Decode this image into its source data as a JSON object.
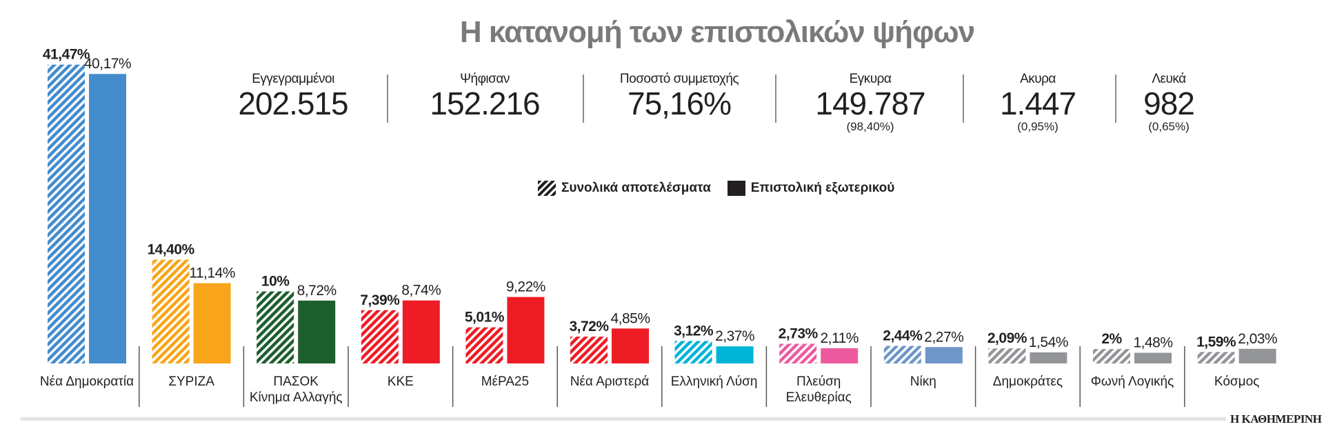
{
  "title": "Η κατανομή των επιστολικών ψήφων",
  "stats": [
    {
      "label": "Εγγεγραμμένοι",
      "value": "202.515",
      "sub": ""
    },
    {
      "label": "Ψήφισαν",
      "value": "152.216",
      "sub": ""
    },
    {
      "label": "Ποσοστό συμμετοχής",
      "value": "75,16%",
      "sub": ""
    },
    {
      "label": "Εγκυρα",
      "value": "149.787",
      "sub": "(98,40%)"
    },
    {
      "label": "Ακυρα",
      "value": "1.447",
      "sub": "(0,95%)"
    },
    {
      "label": "Λευκά",
      "value": "982",
      "sub": "(0,65%)"
    }
  ],
  "legend": {
    "total": "Συνολικά αποτελέσματα",
    "abroad": "Επιστολική εξωτερικού"
  },
  "brand": "Η ΚΑΘΗΜΕΡΙΝΗ",
  "chart_data": {
    "type": "bar",
    "title": "Η κατανομή των επιστολικών ψήφων",
    "grid": false,
    "legend_placement": "top-center",
    "series": [
      {
        "name": "Συνολικά αποτελέσματα",
        "pattern": "hatched",
        "values": [
          41.47,
          14.4,
          10,
          7.39,
          5.01,
          3.72,
          3.12,
          2.73,
          2.44,
          2.09,
          2,
          1.59
        ],
        "labels": [
          "41,47%",
          "14,40%",
          "10%",
          "7,39%",
          "5,01%",
          "3,72%",
          "3,12%",
          "2,73%",
          "2,44%",
          "2,09%",
          "2%",
          "1,59%"
        ]
      },
      {
        "name": "Επιστολική εξωτερικού",
        "pattern": "solid",
        "values": [
          40.17,
          11.14,
          8.72,
          8.74,
          9.22,
          4.85,
          2.37,
          2.11,
          2.27,
          1.54,
          1.48,
          2.03
        ],
        "labels": [
          "40,17%",
          "11,14%",
          "8,72%",
          "8,74%",
          "9,22%",
          "4,85%",
          "2,37%",
          "2,11%",
          "2,27%",
          "1,54%",
          "1,48%",
          "2,03%"
        ]
      }
    ],
    "categories": [
      [
        "Νέα Δημοκρατία"
      ],
      [
        "ΣΥΡΙΖΑ"
      ],
      [
        "ΠΑΣΟΚ",
        "Κίνημα Αλλαγής"
      ],
      [
        "ΚΚΕ"
      ],
      [
        "ΜέΡΑ25"
      ],
      [
        "Νέα Αριστερά"
      ],
      [
        "Ελληνική Λύση"
      ],
      [
        "Πλεύση",
        "Ελευθερίας"
      ],
      [
        "Νίκη"
      ],
      [
        "Δημοκράτες"
      ],
      [
        "Φωνή Λογικής"
      ],
      [
        "Κόσμος"
      ]
    ],
    "colors": [
      "#448ccc",
      "#f9a51b",
      "#1d5e2e",
      "#ee1c25",
      "#ee1c25",
      "#ee1c25",
      "#00b4d8",
      "#ee5a9f",
      "#6f96c8",
      "#939598",
      "#939598",
      "#939598"
    ]
  }
}
